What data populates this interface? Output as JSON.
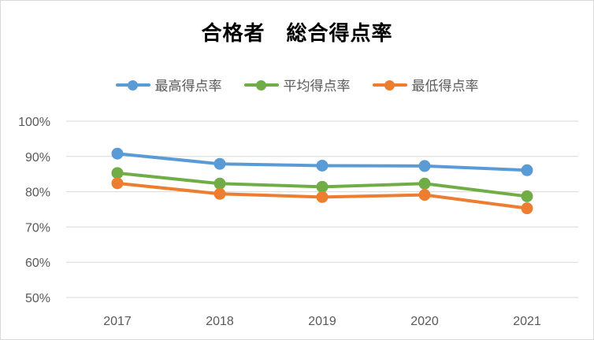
{
  "chart_data": {
    "type": "line",
    "title": "合格者　総合得点率",
    "categories": [
      "2017",
      "2018",
      "2019",
      "2020",
      "2021"
    ],
    "y_ticks": [
      "50%",
      "60%",
      "70%",
      "80%",
      "90%",
      "100%"
    ],
    "ylim": [
      50,
      100
    ],
    "grid": true,
    "legend_position": "top",
    "series": [
      {
        "name": "最高得点率",
        "color": "#5b9bd5",
        "values": [
          90.8,
          87.9,
          87.4,
          87.3,
          86.1
        ]
      },
      {
        "name": "平均得点率",
        "color": "#70ad47",
        "values": [
          85.3,
          82.3,
          81.4,
          82.3,
          78.7
        ]
      },
      {
        "name": "最低得点率",
        "color": "#ed7d31",
        "values": [
          82.4,
          79.4,
          78.5,
          79.1,
          75.3
        ]
      }
    ]
  }
}
